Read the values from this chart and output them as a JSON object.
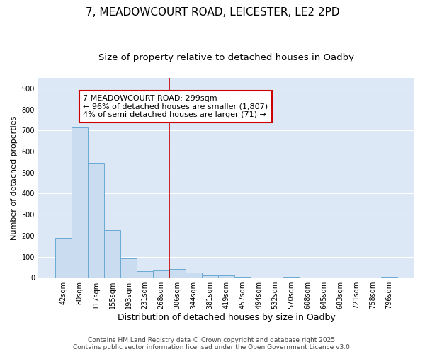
{
  "title_line1": "7, MEADOWCOURT ROAD, LEICESTER, LE2 2PD",
  "title_line2": "Size of property relative to detached houses in Oadby",
  "bar_color": "#c9dcf0",
  "bar_edge_color": "#6aaad4",
  "plot_bg_color": "#dce8f5",
  "fig_bg_color": "#ffffff",
  "grid_color": "#ffffff",
  "categories": [
    "42sqm",
    "80sqm",
    "117sqm",
    "155sqm",
    "193sqm",
    "231sqm",
    "268sqm",
    "306sqm",
    "344sqm",
    "381sqm",
    "419sqm",
    "457sqm",
    "494sqm",
    "532sqm",
    "570sqm",
    "608sqm",
    "645sqm",
    "683sqm",
    "721sqm",
    "758sqm",
    "796sqm"
  ],
  "values": [
    190,
    715,
    545,
    225,
    90,
    30,
    35,
    40,
    25,
    12,
    10,
    5,
    1,
    0,
    5,
    1,
    0,
    0,
    0,
    0,
    5
  ],
  "ylim": [
    0,
    950
  ],
  "yticks": [
    0,
    100,
    200,
    300,
    400,
    500,
    600,
    700,
    800,
    900
  ],
  "ylabel": "Number of detached properties",
  "xlabel": "Distribution of detached houses by size in Oadby",
  "redline_index": 7,
  "annotation_title": "7 MEADOWCOURT ROAD: 299sqm",
  "annotation_line2": "← 96% of detached houses are smaller (1,807)",
  "annotation_line3": "4% of semi-detached houses are larger (71) →",
  "annotation_box_facecolor": "#ffffff",
  "annotation_box_edgecolor": "#cc0000",
  "redline_color": "#cc0000",
  "footer_line1": "Contains HM Land Registry data © Crown copyright and database right 2025.",
  "footer_line2": "Contains public sector information licensed under the Open Government Licence v3.0.",
  "title_fontsize": 11,
  "subtitle_fontsize": 9.5,
  "ylabel_fontsize": 8,
  "xlabel_fontsize": 9,
  "tick_fontsize": 7,
  "annotation_fontsize": 8,
  "footer_fontsize": 6.5
}
